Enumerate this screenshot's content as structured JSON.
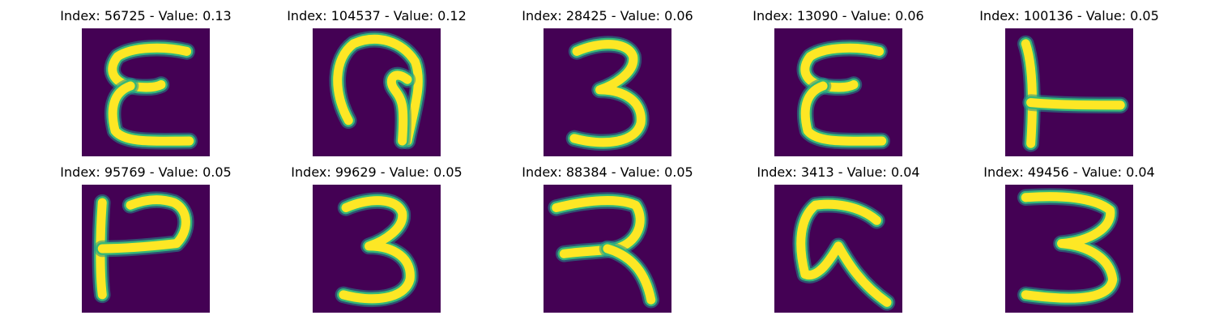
{
  "colors": {
    "background": "#440154",
    "stroke_core": "#fde725",
    "stroke_edge": "#35b779",
    "stroke_halo": "#21918c"
  },
  "panels": [
    {
      "title": "Index: 56725 - Value: 0.13",
      "shape": "E"
    },
    {
      "title": "Index: 104537 - Value: 0.12",
      "shape": "hook-a"
    },
    {
      "title": "Index: 28425 - Value: 0.06",
      "shape": "3"
    },
    {
      "title": "Index: 13090 - Value: 0.06",
      "shape": "E"
    },
    {
      "title": "Index: 100136 - Value: 0.05",
      "shape": "T-side"
    },
    {
      "title": "Index: 95769 - Value: 0.05",
      "shape": "P-side"
    },
    {
      "title": "Index: 99629 - Value: 0.05",
      "shape": "3"
    },
    {
      "title": "Index: 88384 - Value: 0.05",
      "shape": "R-open"
    },
    {
      "title": "Index: 3413 - Value: 0.04",
      "shape": "G-hook"
    },
    {
      "title": "Index: 49456 - Value: 0.04",
      "shape": "3-wide"
    }
  ]
}
